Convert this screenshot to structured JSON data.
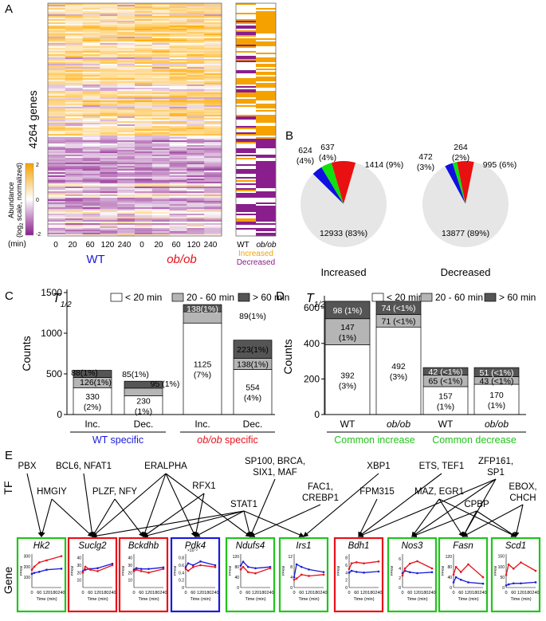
{
  "panel_labels": {
    "a": "A",
    "b": "B",
    "c": "C",
    "d": "D",
    "e": "E"
  },
  "heatmap": {
    "genes_label": "4264 genes",
    "colorbar_title_line1": "Abundance",
    "colorbar_title_line2a": "(log",
    "colorbar_title_line2b": "2",
    "colorbar_title_line2c": " scale, normalized)",
    "colorbar_ticks": [
      "2",
      "0",
      "-2"
    ],
    "time_unit": "(min)",
    "times": [
      "0",
      "20",
      "60",
      "120",
      "240"
    ],
    "group_wt": "WT",
    "group_obob": "ob/ob",
    "right_col_wt": "WT",
    "right_col_obob": "ob/ob",
    "increased_label": "Increased",
    "decreased_label": "Decreased",
    "colors": {
      "orange": "#f5a200",
      "purple": "#8a1e8c",
      "wt_blue": "#1a1adb",
      "obob_red": "#e8111a"
    }
  },
  "chart_data": [
    {
      "type": "pie",
      "title": "Increased",
      "slices": [
        {
          "label": "624 (4%)",
          "value": 624,
          "color": "#1010e0"
        },
        {
          "label": "637 (4%)",
          "value": 637,
          "color": "#10e010"
        },
        {
          "label": "1414 (9%)",
          "value": 1414,
          "color": "#e81010"
        },
        {
          "label": "12933 (83%)",
          "value": 12933,
          "color": "#e6e6e6"
        }
      ]
    },
    {
      "type": "pie",
      "title": "Decreased",
      "slices": [
        {
          "label": "472 (3%)",
          "value": 472,
          "color": "#1010e0"
        },
        {
          "label": "264 (2%)",
          "value": 264,
          "color": "#10e010"
        },
        {
          "label": "995 (6%)",
          "value": 995,
          "color": "#e81010"
        },
        {
          "label": "13877 (89%)",
          "value": 13877,
          "color": "#e6e6e6"
        }
      ]
    },
    {
      "type": "bar",
      "stacked": true,
      "ylabel": "Counts",
      "yticks": [
        "0",
        "500",
        "1000",
        "1500"
      ],
      "ylim": [
        0,
        1500
      ],
      "legend_title_main": "T",
      "legend_title_sub": "1/2",
      "legend": [
        "< 20 min",
        "20 - 60 min",
        "> 60 min"
      ],
      "categories": [
        "Inc.",
        "Dec.",
        "Inc.",
        "Dec."
      ],
      "groups": [
        {
          "label": "WT specific",
          "color": "#1a1adb"
        },
        {
          "label_italic": "ob/ob",
          "label_rest": " specific",
          "color": "#e8111a"
        }
      ],
      "series": [
        {
          "name": "< 20 min",
          "values": [
            330,
            230,
            1125,
            554
          ],
          "labels": [
            "330\n(2%)",
            "230\n(1%)",
            "1125\n(7%)",
            "554\n(4%)"
          ]
        },
        {
          "name": "20 - 60 min",
          "values": [
            126,
            95,
            138,
            138
          ],
          "labels": [
            "",
            "",
            "",
            "138(1%)"
          ]
        },
        {
          "name": "> 60 min",
          "values": [
            88,
            85,
            89,
            223
          ],
          "labels": [
            "",
            "",
            "",
            "223(1%)"
          ]
        }
      ],
      "annotations": [
        "88(1%)",
        "126(1%)",
        "85(1%)",
        "95 (1%)",
        "138(1%)",
        "89(1%)"
      ]
    },
    {
      "type": "bar",
      "stacked": true,
      "ylabel": "Counts",
      "yticks": [
        "0",
        "200",
        "400",
        "600"
      ],
      "ylim": [
        0,
        650
      ],
      "legend_title_main": "T",
      "legend_title_sub": "1/2",
      "legend": [
        "< 20 min",
        "20 - 60 min",
        "> 60 min"
      ],
      "categories": [
        "WT",
        "ob/ob",
        "WT",
        "ob/ob"
      ],
      "groups": [
        {
          "label": "Common increase",
          "color": "#22c41c"
        },
        {
          "label": "Common decrease",
          "color": "#22c41c"
        }
      ],
      "series": [
        {
          "name": "< 20 min",
          "values": [
            392,
            492,
            157,
            170
          ],
          "labels": [
            "392\n(3%)",
            "492\n(3%)",
            "157\n(1%)",
            "170\n(1%)"
          ]
        },
        {
          "name": "20 - 60 min",
          "values": [
            147,
            71,
            65,
            43
          ],
          "labels": [
            "147\n(1%)",
            "71 (<1%)",
            "65 (<1%)",
            "43 (<1%)"
          ]
        },
        {
          "name": "> 60 min",
          "values": [
            98,
            74,
            42,
            51
          ],
          "labels": [
            "98 (1%)",
            "74 (<1%)",
            "42 (<1%)",
            "51 (<1%)"
          ]
        }
      ]
    },
    {
      "type": "line",
      "panel": "E",
      "xlabel": "Time (min)",
      "ylabel": "FPKM",
      "x": [
        0,
        20,
        60,
        120,
        240
      ],
      "xticks": [
        "0",
        "60",
        "120",
        "180",
        "240"
      ],
      "genes": [
        {
          "name": "Hk2",
          "border": "green",
          "yticks": [
            "100",
            "200",
            "300"
          ],
          "ylim": [
            0,
            320
          ],
          "wt": [
            130,
            140,
            150,
            170,
            180
          ],
          "obob": [
            170,
            200,
            240,
            260,
            300
          ]
        },
        {
          "name": "Suclg2",
          "border": "red",
          "yticks": [
            "10",
            "20",
            "30",
            "40"
          ],
          "ylim": [
            0,
            45
          ],
          "wt": [
            22,
            24,
            25,
            26,
            32
          ],
          "obob": [
            20,
            28,
            24,
            22,
            30
          ]
        },
        {
          "name": "Bckdhb",
          "border": "red",
          "yticks": [
            "10",
            "20",
            "30",
            "40"
          ],
          "ylim": [
            0,
            45
          ],
          "wt": [
            24,
            26,
            25,
            25,
            27
          ],
          "obob": [
            22,
            24,
            22,
            20,
            25
          ]
        },
        {
          "name": "Pdk4",
          "border": "blue",
          "yticks": [
            "0",
            "0.2",
            "0.4",
            "0.6",
            "0.8"
          ],
          "ylim": [
            0,
            0.9
          ],
          "axis_note": "×10⁻²",
          "wt": [
            0.55,
            0.65,
            0.6,
            0.7,
            0.6
          ],
          "obob": [
            0.5,
            0.45,
            0.55,
            0.6,
            0.55
          ]
        },
        {
          "name": "Ndufs4",
          "border": "green",
          "yticks": [
            "0",
            "40",
            "80",
            "120"
          ],
          "ylim": [
            0,
            130
          ],
          "wt": [
            85,
            100,
            80,
            75,
            80
          ],
          "obob": [
            70,
            80,
            60,
            55,
            75
          ]
        },
        {
          "name": "Irs1",
          "border": "green",
          "yticks": [
            "0",
            "4",
            "8",
            "12"
          ],
          "ylim": [
            0,
            13
          ],
          "wt": [
            4,
            9,
            8,
            7,
            6
          ],
          "obob": [
            3,
            3.5,
            5,
            4.5,
            5
          ]
        },
        {
          "name": "Bdh1",
          "border": "red",
          "yticks": [
            "0",
            "2",
            "4",
            "6",
            "8"
          ],
          "ylim": [
            0,
            9
          ],
          "wt": [
            4,
            4.5,
            4.2,
            4,
            4.3
          ],
          "obob": [
            5,
            6.5,
            6.8,
            6.5,
            7
          ]
        },
        {
          "name": "Nos3",
          "border": "green",
          "yticks": [
            "0",
            "2",
            "4",
            "6"
          ],
          "ylim": [
            0,
            7
          ],
          "wt": [
            3,
            3.5,
            3.2,
            3,
            3.2
          ],
          "obob": [
            2.5,
            4,
            5,
            5.5,
            4
          ]
        },
        {
          "name": "Fasn",
          "border": "green",
          "yticks": [
            "0",
            "40",
            "80",
            "120"
          ],
          "ylim": [
            0,
            130
          ],
          "wt": [
            20,
            40,
            30,
            20,
            15
          ],
          "obob": [
            50,
            80,
            60,
            90,
            40
          ]
        },
        {
          "name": "Scd1",
          "border": "green",
          "yticks": [
            "0",
            "50",
            "100",
            "150"
          ],
          "ylim": [
            0,
            160
          ],
          "wt": [
            10,
            15,
            20,
            20,
            25
          ],
          "obob": [
            60,
            110,
            90,
            120,
            80
          ]
        }
      ]
    }
  ],
  "network": {
    "tf_label": "TF",
    "gene_label": "Gene",
    "tfs": [
      "PBX",
      "BCL6, NFAT1",
      "ERALPHA",
      "SP100, BRCA,",
      "SIX1, MAF",
      "XBP1",
      "ETS, TEF1",
      "ZFP161,",
      "SP1",
      "HMGIY",
      "PLZF, NFY",
      "RFX1",
      "STAT1",
      "FAC1,",
      "CREBP1",
      "FPM315",
      "MAZ, EGR1",
      "CPBP",
      "EBOX,",
      "CHCH"
    ],
    "edges": [
      [
        "PBX",
        "Hk2"
      ],
      [
        "HMGIY",
        "Hk2"
      ],
      [
        "BCL6, NFAT1",
        "Suclg2"
      ],
      [
        "HMGIY",
        "Suclg2"
      ],
      [
        "PLZF, NFY",
        "Suclg2"
      ],
      [
        "PLZF, NFY",
        "Bckdhb"
      ],
      [
        "ERALPHA",
        "Suclg2"
      ],
      [
        "ERALPHA",
        "Bckdhb"
      ],
      [
        "ERALPHA",
        "Ndufs4"
      ],
      [
        "ERALPHA",
        "Pdk4"
      ],
      [
        "RFX1",
        "Bckdhb"
      ],
      [
        "RFX1",
        "Pdk4"
      ],
      [
        "STAT1",
        "Suclg2"
      ],
      [
        "STAT1",
        "Bckdhb"
      ],
      [
        "STAT1",
        "Pdk4"
      ],
      [
        "STAT1",
        "Ndufs4"
      ],
      [
        "STAT1",
        "Irs1"
      ],
      [
        "SP100, BRCA,",
        "Ndufs4"
      ],
      [
        "FAC1,",
        "Ndufs4"
      ],
      [
        "XBP1",
        "Irs1"
      ],
      [
        "ETS, TEF1",
        "Bdh1"
      ],
      [
        "FPM315",
        "Bdh1"
      ],
      [
        "MAZ, EGR1",
        "Nos3"
      ],
      [
        "MAZ, EGR1",
        "Fasn"
      ],
      [
        "MAZ, EGR1",
        "Scd1"
      ],
      [
        "ZFP161,",
        "Bdh1"
      ],
      [
        "ZFP161,",
        "Nos3"
      ],
      [
        "ZFP161,",
        "Fasn"
      ],
      [
        "CPBP",
        "Nos3"
      ],
      [
        "CPBP",
        "Fasn"
      ],
      [
        "CPBP",
        "Scd1"
      ],
      [
        "EBOX,",
        "Fasn"
      ],
      [
        "EBOX,",
        "Scd1"
      ]
    ]
  }
}
